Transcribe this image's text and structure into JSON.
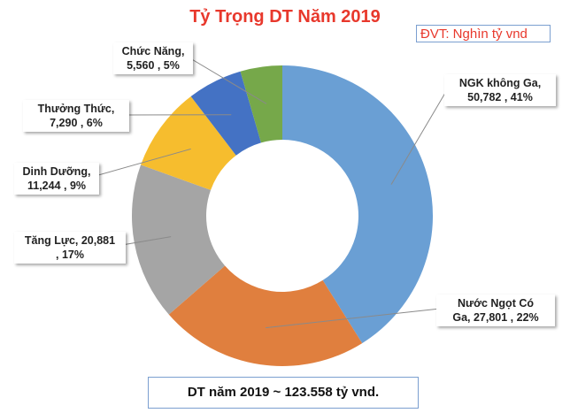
{
  "chart_data": {
    "type": "pie",
    "variant": "donut",
    "title": "Tỷ Trọng DT Năm 2019",
    "unit_note": "ĐVT: Nghìn tỷ vnd",
    "total_note": "DT năm 2019 ~ 123.558  tỷ vnd.",
    "slices": [
      {
        "name": "NGK không Ga",
        "value": 50782,
        "percent": 41,
        "color": "#6a9fd4",
        "label": [
          "NGK không Ga,",
          "50,782 , 41%"
        ]
      },
      {
        "name": "Nước Ngọt Có Ga",
        "value": 27801,
        "percent": 22,
        "color": "#e07f3e",
        "label": [
          "Nước Ngọt Có",
          "Ga,  27,801 , 22%"
        ]
      },
      {
        "name": "Tăng Lực",
        "value": 20881,
        "percent": 17,
        "color": "#a5a5a5",
        "label": [
          "Tăng Lực,  20,881",
          ", 17%"
        ]
      },
      {
        "name": "Dinh Dưỡng",
        "value": 11244,
        "percent": 9,
        "color": "#f6bd2e",
        "label": [
          "Dinh Dưỡng,",
          "11,244 , 9%"
        ]
      },
      {
        "name": "Thưởng Thức",
        "value": 7290,
        "percent": 6,
        "color": "#4472c4",
        "label": [
          "Thưởng Thức,",
          "7,290 , 6%"
        ]
      },
      {
        "name": "Chức Năng",
        "value": 5560,
        "percent": 5,
        "color": "#76a84a",
        "label": [
          "Chức Năng,",
          "5,560 , 5%"
        ]
      }
    ],
    "legend": "none"
  }
}
